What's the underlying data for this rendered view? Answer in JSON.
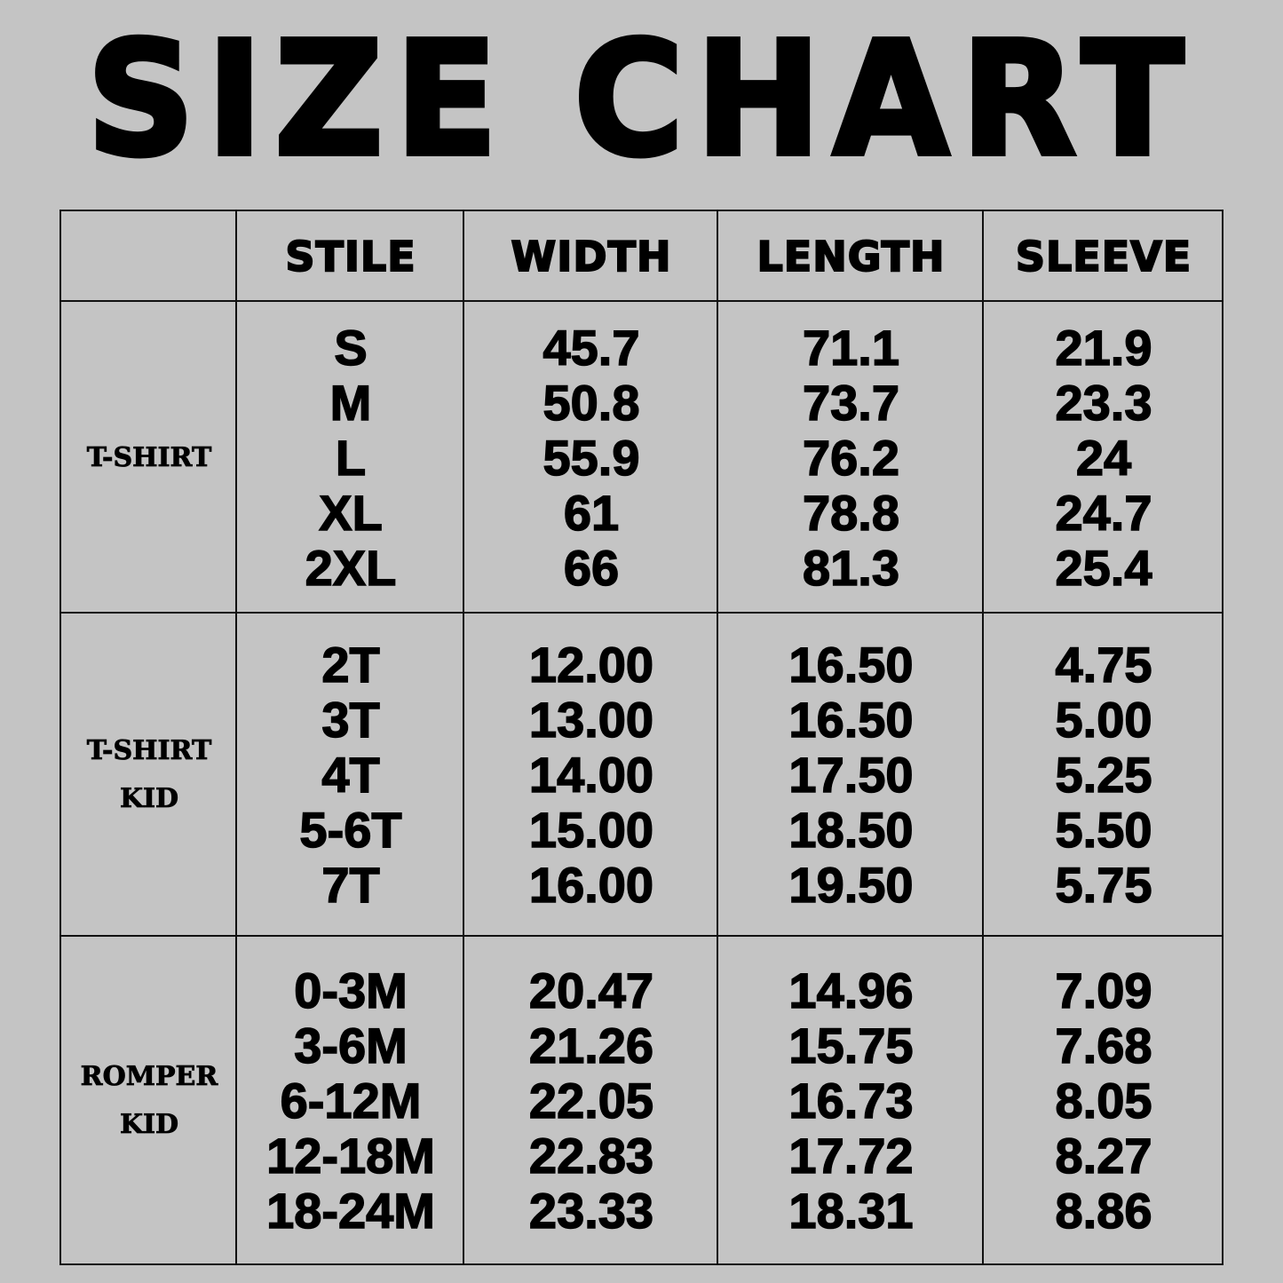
{
  "title": "SIZE CHART",
  "headers": [
    "",
    "STILE",
    "WIDTH",
    "LENGTH",
    "SLEEVE"
  ],
  "groups": [
    {
      "label": [
        "T-SHIRT"
      ],
      "stile": [
        "S",
        "M",
        "L",
        "XL",
        "2XL"
      ],
      "width": [
        "45.7",
        "50.8",
        "55.9",
        "61",
        "66"
      ],
      "length": [
        "71.1",
        "73.7",
        "76.2",
        "78.8",
        "81.3"
      ],
      "sleeve": [
        "21.9",
        "23.3",
        "24",
        "24.7",
        "25.4"
      ]
    },
    {
      "label": [
        "T-SHIRT",
        "KID"
      ],
      "stile": [
        "2T",
        "3T",
        "4T",
        "5-6T",
        "7T"
      ],
      "width": [
        "12.00",
        "13.00",
        "14.00",
        "15.00",
        "16.00"
      ],
      "length": [
        "16.50",
        "16.50",
        "17.50",
        "18.50",
        "19.50"
      ],
      "sleeve": [
        "4.75",
        "5.00",
        "5.25",
        "5.50",
        "5.75"
      ]
    },
    {
      "label": [
        "ROMPER",
        "KID"
      ],
      "stile": [
        "0-3M",
        "3-6M",
        "6-12M",
        "12-18M",
        "18-24M"
      ],
      "width": [
        "20.47",
        "21.26",
        "22.05",
        "22.83",
        "23.33"
      ],
      "length": [
        "14.96",
        "15.75",
        "16.73",
        "17.72",
        "18.31"
      ],
      "sleeve": [
        "7.09",
        "7.68",
        "8.05",
        "8.27",
        "8.86"
      ]
    }
  ],
  "colors": {
    "background": "#c4c4c4",
    "text": "#000000",
    "lines": "#111111"
  }
}
